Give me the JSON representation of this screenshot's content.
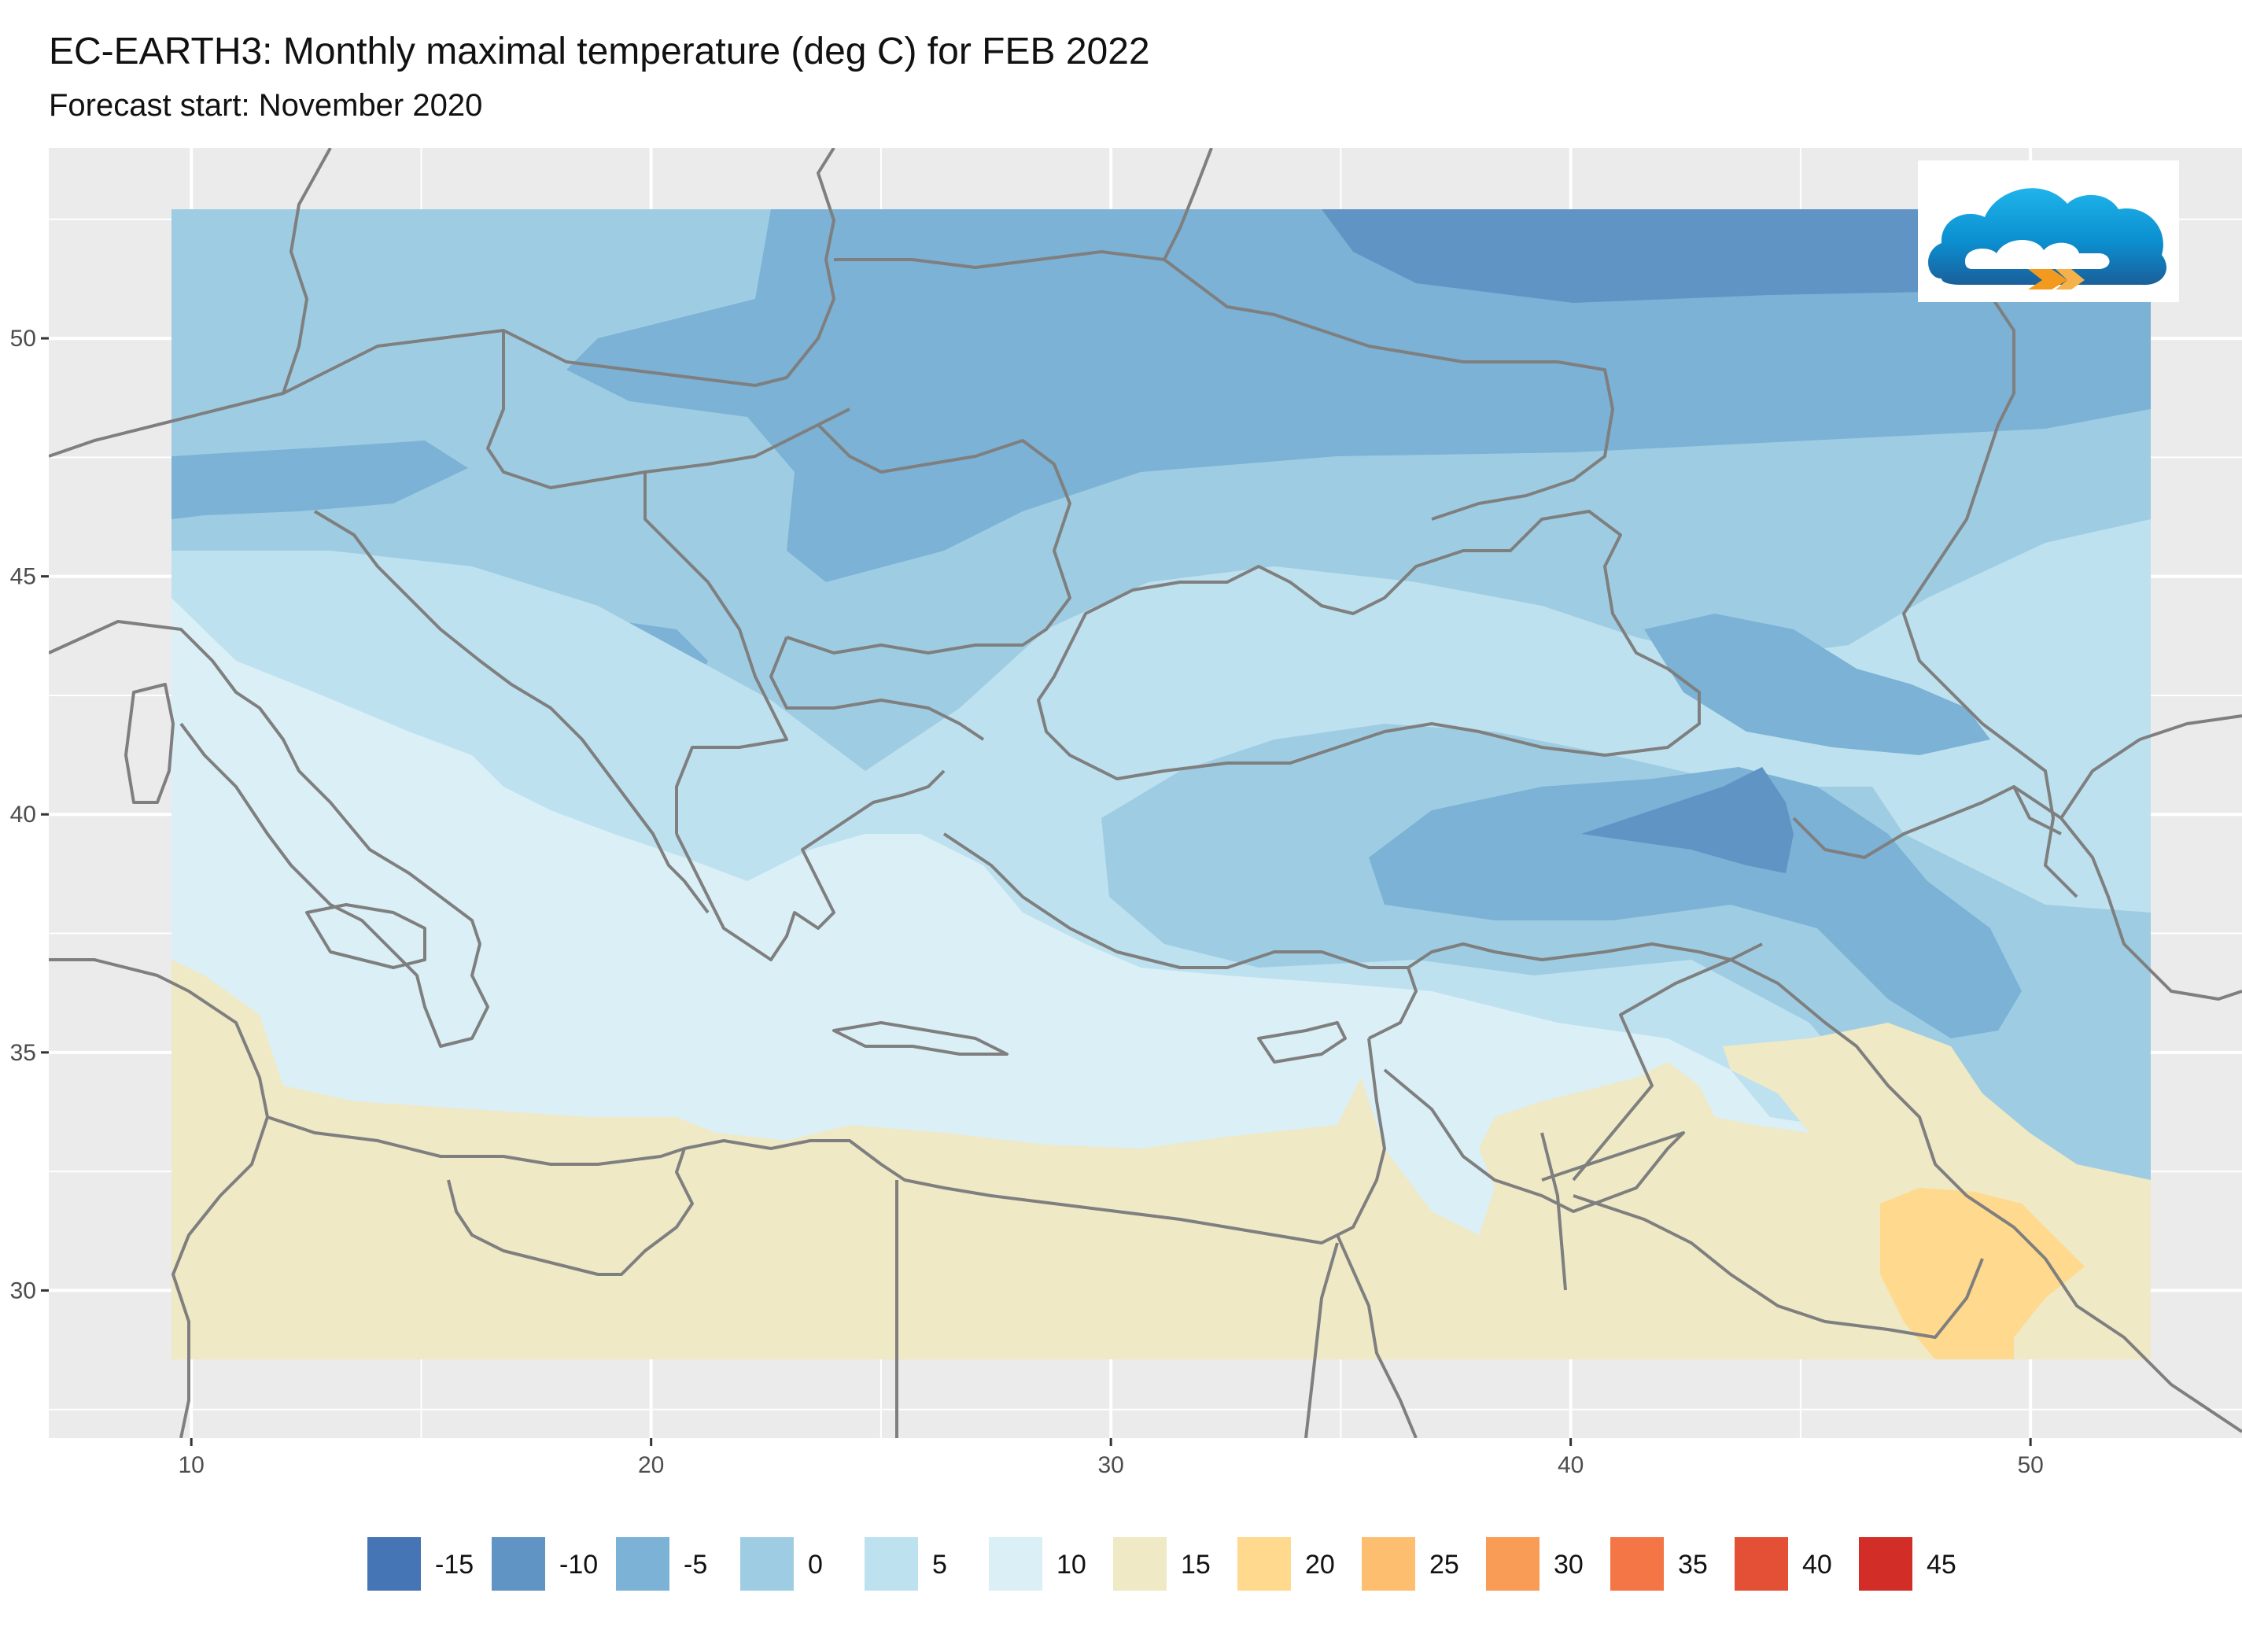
{
  "header": {
    "title": "EC-EARTH3: Monthly maximal temperature (deg C) for FEB 2022",
    "subtitle": "Forecast start: November 2020"
  },
  "map": {
    "x_axis": {
      "range": [
        6.9,
        54.6
      ],
      "ticks": [
        10,
        20,
        30,
        40,
        50
      ]
    },
    "y_axis": {
      "range": [
        26.9,
        54.0
      ],
      "ticks": [
        30,
        35,
        40,
        45,
        50
      ]
    },
    "data_extent": {
      "lon": [
        9.5,
        51.6
      ],
      "lat": [
        28.5,
        53.0
      ]
    },
    "background_color": "#ebebeb",
    "grid_color": "#ffffff",
    "border_color": "#7f7f7f"
  },
  "legend": {
    "items": [
      {
        "label": "-15",
        "color": "#4575b4"
      },
      {
        "label": "-10",
        "color": "#6094c4"
      },
      {
        "label": "-5",
        "color": "#7bb2d5"
      },
      {
        "label": "0",
        "color": "#9ecde3"
      },
      {
        "label": "5",
        "color": "#bde1ef"
      },
      {
        "label": "10",
        "color": "#dbeff6"
      },
      {
        "label": "15",
        "color": "#efe9c5"
      },
      {
        "label": "20",
        "color": "#fed98e"
      },
      {
        "label": "25",
        "color": "#fdbe70"
      },
      {
        "label": "30",
        "color": "#f99c56"
      },
      {
        "label": "35",
        "color": "#f47546"
      },
      {
        "label": "40",
        "color": "#e45035"
      },
      {
        "label": "45",
        "color": "#d22d26"
      }
    ]
  },
  "logo": {
    "icon": "cloud-logo-icon"
  }
}
